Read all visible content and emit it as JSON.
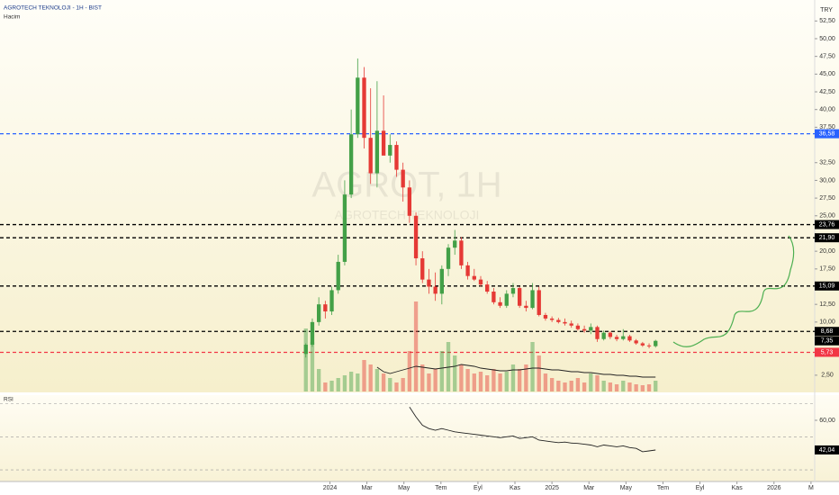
{
  "chart_data": {
    "type": "candlestick",
    "title": "AGROTECH TEKNOLOJI - 1H - BIST",
    "volume_label": "Hacim",
    "currency": "TRY",
    "watermark": [
      "AGROT, 1H",
      "AGROTECH TEKNOLOJI"
    ],
    "up_color": "#43a047",
    "down_color": "#e53935",
    "volume_ma_color": "#222222",
    "xlim": [
      -17.83,
      26.2
    ],
    "xticks": [
      {
        "value": 0,
        "label": "2024"
      },
      {
        "value": 2,
        "label": "Mar"
      },
      {
        "value": 4,
        "label": "May"
      },
      {
        "value": 6,
        "label": "Tem"
      },
      {
        "value": 8,
        "label": "Eyl"
      },
      {
        "value": 10,
        "label": "Kas"
      },
      {
        "value": 12,
        "label": "2025"
      },
      {
        "value": 14,
        "label": "Mar"
      },
      {
        "value": 16,
        "label": "May"
      },
      {
        "value": 18,
        "label": "Tem"
      },
      {
        "value": 20,
        "label": "Eyl"
      },
      {
        "value": 22,
        "label": "Kas"
      },
      {
        "value": 24,
        "label": "2026"
      },
      {
        "value": 26,
        "label": "M"
      }
    ],
    "ylim": [
      0.2,
      55.46
    ],
    "yticks": [
      {
        "value": 52.5,
        "label": "52,50"
      },
      {
        "value": 50,
        "label": "50,00"
      },
      {
        "value": 47.5,
        "label": "47,50"
      },
      {
        "value": 45,
        "label": "45,00"
      },
      {
        "value": 42.5,
        "label": "42,50"
      },
      {
        "value": 40,
        "label": "40,00"
      },
      {
        "value": 37.5,
        "label": "37,50"
      },
      {
        "value": 32.5,
        "label": "32,50"
      },
      {
        "value": 30,
        "label": "30,00"
      },
      {
        "value": 27.5,
        "label": "27,50"
      },
      {
        "value": 25,
        "label": "25,00"
      },
      {
        "value": 20,
        "label": "20,00"
      },
      {
        "value": 17.5,
        "label": "17,50"
      },
      {
        "value": 12.5,
        "label": "12,50"
      },
      {
        "value": 10,
        "label": "10,00"
      },
      {
        "value": 2.5,
        "label": "2,50"
      }
    ],
    "levels": [
      {
        "value": 36.58,
        "label": "36,58",
        "color": "#2962ff"
      },
      {
        "value": 23.76,
        "label": "23,76",
        "color": "#000000"
      },
      {
        "value": 21.9,
        "label": "21,90",
        "color": "#000000"
      },
      {
        "value": 15.09,
        "label": "15,09",
        "color": "#000000"
      },
      {
        "value": 8.68,
        "label": "8,68",
        "color": "#000000"
      },
      {
        "value": 5.73,
        "label": "5,73",
        "color": "#f23645"
      }
    ],
    "last_label": "7,35",
    "x": [
      -1.3,
      -0.95,
      -0.6,
      -0.25,
      0.1,
      0.45,
      0.8,
      1.15,
      1.5,
      1.85,
      2.2,
      2.55,
      2.9,
      3.25,
      3.6,
      3.95,
      4.3,
      4.65,
      5.0,
      5.35,
      5.7,
      6.05,
      6.4,
      6.75,
      7.1,
      7.45,
      7.8,
      8.15,
      8.5,
      8.85,
      9.2,
      9.55,
      9.9,
      10.25,
      10.6,
      10.95,
      11.3,
      11.65,
      12.0,
      12.35,
      12.7,
      13.05,
      13.4,
      13.75,
      14.1,
      14.45,
      14.8,
      15.15,
      15.5,
      15.85,
      16.2,
      16.55,
      16.9,
      17.25,
      17.6
    ],
    "open": [
      5.5,
      6.8,
      10,
      12.5,
      11.5,
      14.5,
      18.5,
      28,
      36.5,
      44.5,
      36,
      31,
      37,
      33.5,
      35,
      31.5,
      29,
      25,
      19,
      16,
      15,
      14,
      17.5,
      20.5,
      21.5,
      18,
      16.5,
      16,
      15.3,
      14.3,
      12.8,
      12.3,
      14,
      14.8,
      12.3,
      12,
      14.5,
      11,
      10.5,
      10.3,
      10,
      9.8,
      9.5,
      9,
      8.8,
      9.3,
      7.6,
      8.5,
      7.9,
      7.6,
      8,
      7.4,
      7,
      6.7,
      6.6
    ],
    "high": [
      7,
      10.5,
      13.5,
      13,
      15,
      19.5,
      30,
      40,
      47.2,
      46,
      43,
      44,
      42,
      36.5,
      35.5,
      32.5,
      30,
      25.5,
      20,
      17.5,
      17,
      18,
      21,
      23,
      22,
      18.5,
      17.5,
      16.5,
      15.8,
      14.8,
      13.5,
      14.5,
      15.5,
      15,
      13,
      15.5,
      15,
      11.3,
      10.8,
      10.6,
      10.5,
      10.2,
      9.8,
      9.5,
      9.8,
      9.5,
      8.8,
      8.7,
      8.2,
      9,
      8.2,
      7.6,
      7.2,
      7,
      7.5
    ],
    "low": [
      5,
      6.5,
      9.5,
      10.5,
      11,
      14,
      18,
      27.5,
      36,
      34.5,
      29.5,
      29,
      34,
      32.5,
      30.5,
      27,
      24,
      18,
      15.5,
      14,
      13,
      12.5,
      16.5,
      19.5,
      17.5,
      16,
      15.8,
      15,
      14,
      12.5,
      12,
      12,
      13.5,
      12,
      11.5,
      11.8,
      10.8,
      10.2,
      10,
      9.8,
      9.5,
      9.2,
      8.8,
      8.5,
      8.3,
      7.2,
      7.4,
      7.6,
      7.3,
      7.4,
      7.2,
      6.8,
      6.5,
      6.3,
      6.4
    ],
    "close": [
      6.8,
      10,
      12.5,
      11.5,
      14.5,
      18.5,
      28,
      36.5,
      44.5,
      36,
      31,
      37,
      33.5,
      35,
      31.5,
      29,
      25,
      19,
      16,
      15,
      14,
      17.5,
      20.5,
      21.5,
      18,
      16.5,
      16,
      15.3,
      14.3,
      12.8,
      12.3,
      14,
      14.8,
      12.3,
      12,
      14.5,
      11,
      10.5,
      10.3,
      10,
      9.8,
      9.5,
      9,
      8.8,
      9.3,
      7.6,
      8.5,
      7.9,
      7.6,
      8,
      7.4,
      7,
      6.7,
      6.6,
      7.35
    ],
    "volume": [
      70,
      55,
      25,
      10,
      12,
      15,
      18,
      22,
      20,
      35,
      30,
      25,
      20,
      15,
      10,
      15,
      45,
      100,
      30,
      20,
      25,
      45,
      55,
      40,
      30,
      25,
      20,
      22,
      18,
      25,
      20,
      22,
      30,
      25,
      30,
      55,
      40,
      20,
      15,
      12,
      10,
      12,
      15,
      10,
      20,
      18,
      12,
      10,
      8,
      12,
      10,
      8,
      7,
      8,
      12
    ],
    "volume_ma": [
      null,
      null,
      null,
      null,
      null,
      null,
      null,
      null,
      null,
      null,
      null,
      27,
      22,
      20,
      22,
      24,
      26,
      28,
      27,
      26,
      25,
      26,
      27,
      28,
      30,
      29,
      28,
      26,
      25,
      24,
      23,
      23,
      24,
      24,
      25,
      26,
      26,
      25,
      24,
      24,
      23,
      22,
      22,
      21,
      21,
      20,
      19,
      19,
      18,
      18,
      17,
      17,
      16,
      16,
      16
    ],
    "rsi": {
      "label": "RSI",
      "color": "#222222",
      "ylim": [
        23.5,
        74.7
      ],
      "yticks": [
        {
          "value": 60,
          "label": "60,00"
        }
      ],
      "levels": [
        70,
        50,
        30
      ],
      "last_label": "42,04",
      "values": [
        null,
        null,
        null,
        null,
        null,
        null,
        null,
        null,
        null,
        null,
        null,
        null,
        null,
        null,
        null,
        null,
        68,
        62,
        57,
        55,
        54,
        55,
        54,
        53,
        52.5,
        52,
        51.5,
        51,
        50.5,
        50,
        49.5,
        50,
        50.5,
        49,
        49.5,
        50,
        48,
        47.5,
        47,
        46.5,
        46.8,
        46.2,
        46,
        45.5,
        45,
        44,
        45,
        44.5,
        44,
        44.5,
        43.5,
        43,
        41,
        41.5,
        42.04
      ]
    }
  }
}
